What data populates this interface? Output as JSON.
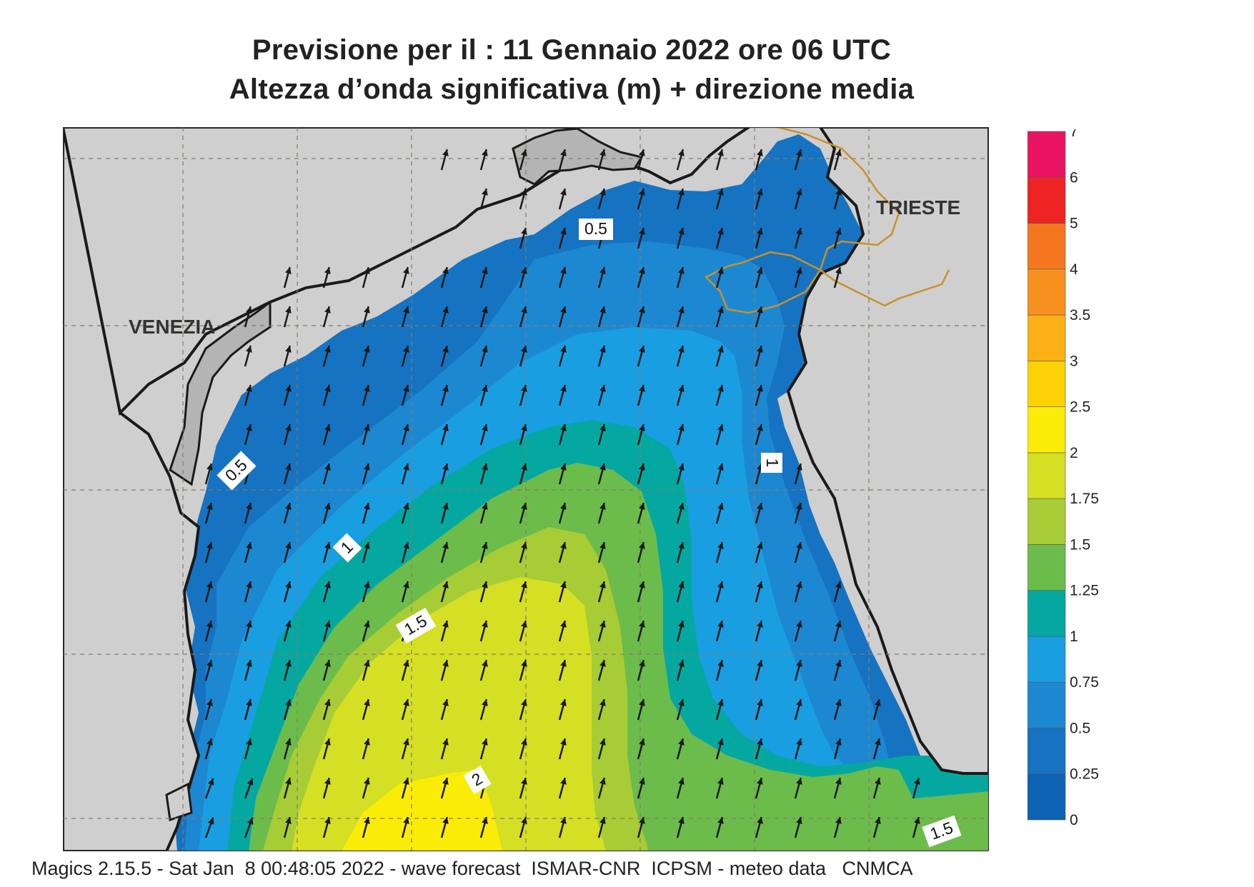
{
  "title_line1": "Previsione per il  :  11  Gennaio  2022   ore 06 UTC",
  "title_line2": "Altezza d’onda significativa (m) + direzione media",
  "cities": [
    {
      "name": "VENEZIA"
    },
    {
      "name": "TRIESTE"
    }
  ],
  "contour_labels": [
    "0.5",
    "0.5",
    "1",
    "1",
    "1.5",
    "1.5",
    "2"
  ],
  "legend": {
    "ticks": [
      "0",
      "0.25",
      "0.5",
      "0.75",
      "1",
      "1.25",
      "1.5",
      "1.75",
      "2",
      "2.5",
      "3",
      "3.5",
      "4",
      "5",
      "6",
      "7"
    ],
    "colors": [
      "#0c62b3",
      "#1673c2",
      "#1d88d2",
      "#1a9ee2",
      "#05a8a0",
      "#6cbc4c",
      "#a7cc36",
      "#d5df24",
      "#fbec08",
      "#fcd106",
      "#fbb116",
      "#f7901e",
      "#f47720",
      "#ee2424",
      "#ea1463"
    ]
  },
  "field_colors": {
    "land": "#cfcfcf",
    "border": "#c8912a",
    "arrow": "#1a1a1a"
  },
  "footer": "Magics 2.15.5 - Sat Jan  8 00:48:05 2022 - wave forecast  ISMAR-CNR  ICPSM - meteo data   CNMCA"
}
